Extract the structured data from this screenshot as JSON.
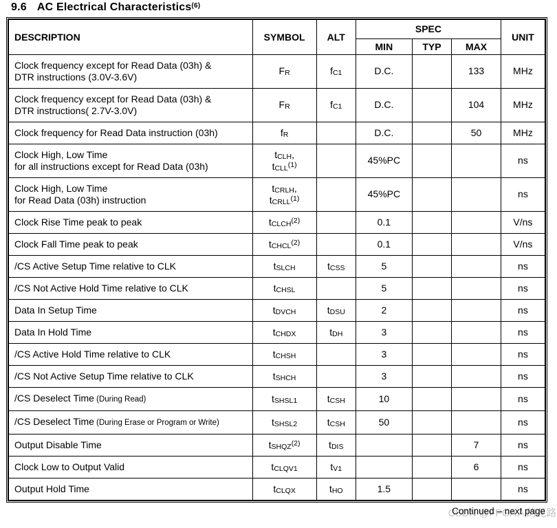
{
  "page": {
    "title": {
      "number": "9.6",
      "text": "AC Electrical Characteristics",
      "footnote": "(6)"
    },
    "footer": {
      "continued": "Continued – next page",
      "watermark": "CSDN @FPGA人的花路"
    }
  },
  "table": {
    "header": {
      "description": "DESCRIPTION",
      "symbol": "SYMBOL",
      "alt": "ALT",
      "spec": "SPEC",
      "min": "MIN",
      "typ": "TYP",
      "max": "MAX",
      "unit": "UNIT"
    },
    "rows": [
      {
        "description": "Clock frequency except for Read Data (03h) &\nDTR instructions (3.0V-3.6V)",
        "symbol": "F_{R}",
        "alt": "f_{C1}",
        "min": "D.C.",
        "typ": "",
        "max": "133",
        "unit": "MHz"
      },
      {
        "description": "Clock frequency except for Read Data (03h) &\nDTR instructions( 2.7V-3.0V)",
        "symbol": "F_{R}",
        "alt": "f_{C1}",
        "min": "D.C.",
        "typ": "",
        "max": "104",
        "unit": "MHz"
      },
      {
        "description": "Clock frequency for Read Data instruction (03h)",
        "symbol": "f_{R}",
        "alt": "",
        "min": "D.C.",
        "typ": "",
        "max": "50",
        "unit": "MHz"
      },
      {
        "description": "Clock High, Low Time\nfor all instructions except for Read Data (03h)",
        "symbol": "t_{CLH},\nt_{CLL}^{(1)}",
        "alt": "",
        "min": "45%PC",
        "typ": "",
        "max": "",
        "unit": "ns"
      },
      {
        "description": "Clock High, Low Time\nfor Read Data (03h) instruction",
        "symbol": "t_{CRLH},\nt_{CRLL}^{(1)}",
        "alt": "",
        "min": "45%PC",
        "typ": "",
        "max": "",
        "unit": "ns"
      },
      {
        "description": "Clock Rise Time peak to peak",
        "symbol": "t_{CLCH}^{(2)}",
        "alt": "",
        "min": "0.1",
        "typ": "",
        "max": "",
        "unit": "V/ns"
      },
      {
        "description": "Clock Fall Time peak to peak",
        "symbol": "t_{CHCL}^{(2)}",
        "alt": "",
        "min": "0.1",
        "typ": "",
        "max": "",
        "unit": "V/ns"
      },
      {
        "description": "/CS Active Setup Time relative to CLK",
        "symbol": "t_{SLCH}",
        "alt": "t_{CSS}",
        "min": "5",
        "typ": "",
        "max": "",
        "unit": "ns"
      },
      {
        "description": "/CS Not Active Hold Time relative to CLK",
        "symbol": "t_{CHSL}",
        "alt": "",
        "min": "5",
        "typ": "",
        "max": "",
        "unit": "ns"
      },
      {
        "description": "Data In Setup Time",
        "symbol": "t_{DVCH}",
        "alt": "t_{DSU}",
        "min": "2",
        "typ": "",
        "max": "",
        "unit": "ns"
      },
      {
        "description": "Data In Hold Time",
        "symbol": "t_{CHDX}",
        "alt": "t_{DH}",
        "min": "3",
        "typ": "",
        "max": "",
        "unit": "ns"
      },
      {
        "description": "/CS Active Hold Time relative to CLK",
        "symbol": "t_{CHSH}",
        "alt": "",
        "min": "3",
        "typ": "",
        "max": "",
        "unit": "ns"
      },
      {
        "description": "/CS Not Active Setup Time relative to CLK",
        "symbol": "t_{SHCH}",
        "alt": "",
        "min": "3",
        "typ": "",
        "max": "",
        "unit": "ns"
      },
      {
        "description": "/CS Deselect Time%{ (During Read)}",
        "symbol": "t_{SHSL1}",
        "alt": "t_{CSH}",
        "min": "10",
        "typ": "",
        "max": "",
        "unit": "ns"
      },
      {
        "description": "/CS Deselect Time%{ (During Erase or Program or Write)}",
        "symbol": "t_{SHSL2}",
        "alt": "t_{CSH}",
        "min": "50",
        "typ": "",
        "max": "",
        "unit": "ns"
      },
      {
        "description": "Output Disable Time",
        "symbol": "t_{SHQZ}^{(2)}",
        "alt": "t_{DIS}",
        "min": "",
        "typ": "",
        "max": "7",
        "unit": "ns"
      },
      {
        "description": "Clock Low to Output Valid",
        "symbol": "t_{CLQV1}",
        "alt": "t_{V1}",
        "min": "",
        "typ": "",
        "max": "6",
        "unit": "ns"
      },
      {
        "description": "Output Hold Time",
        "symbol": "t_{CLQX}",
        "alt": "t_{HO}",
        "min": "1.5",
        "typ": "",
        "max": "",
        "unit": "ns"
      }
    ]
  }
}
